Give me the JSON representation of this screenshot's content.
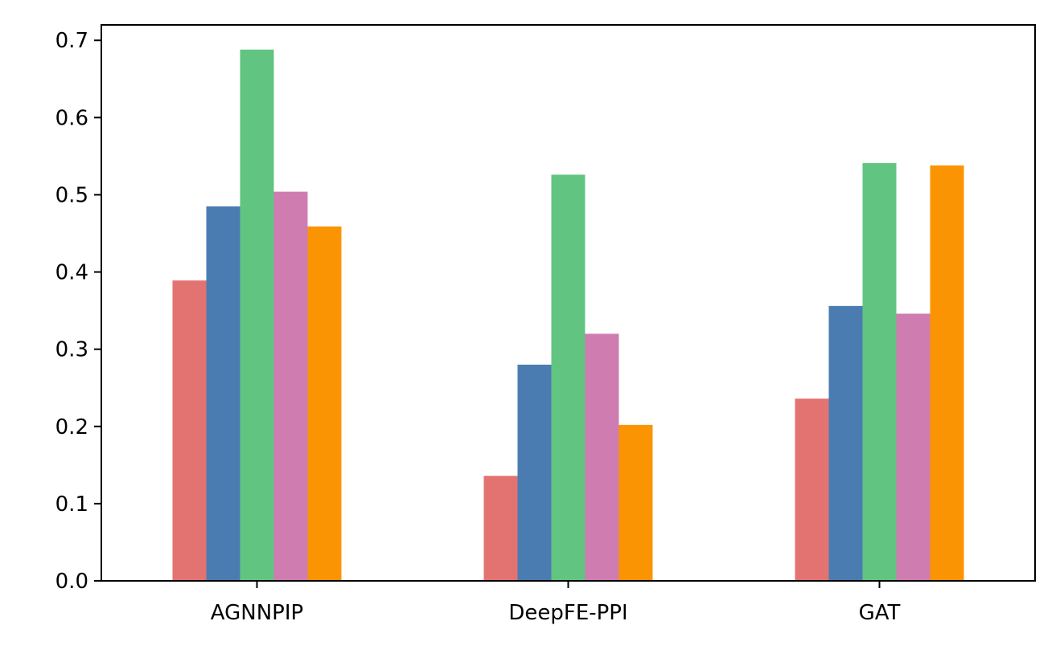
{
  "chart_data": {
    "type": "bar",
    "categories": [
      "AGNNPIP",
      "DeepFE-PPI",
      "GAT"
    ],
    "series": [
      {
        "values": [
          0.389,
          0.136,
          0.236
        ],
        "color": "#e37371"
      },
      {
        "values": [
          0.485,
          0.28,
          0.356
        ],
        "color": "#4a7cb1"
      },
      {
        "values": [
          0.688,
          0.526,
          0.541
        ],
        "color": "#62c481"
      },
      {
        "values": [
          0.504,
          0.32,
          0.346
        ],
        "color": "#cf7cb0"
      },
      {
        "values": [
          0.459,
          0.202,
          0.538
        ],
        "color": "#fb9402"
      }
    ],
    "yticks": [
      "0.0",
      "0.1",
      "0.2",
      "0.3",
      "0.4",
      "0.5",
      "0.6",
      "0.7"
    ],
    "ylim": [
      0,
      0.72
    ],
    "grid": false,
    "title": "",
    "xlabel": "",
    "ylabel": ""
  }
}
